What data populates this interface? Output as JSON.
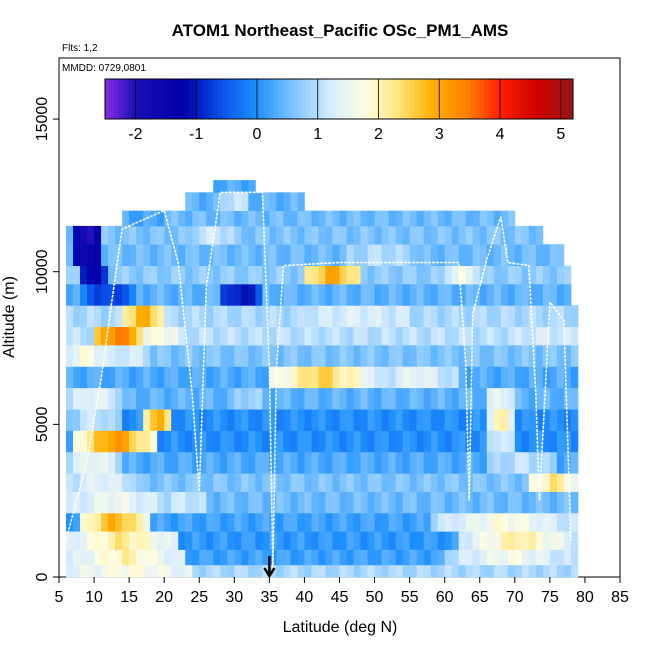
{
  "chart_data": {
    "type": "heatmap",
    "title": "ATOM1 Northeast_Pacific OSc_PM1_AMS",
    "flights_note": "Flts: 1,2",
    "date_note": "MMDD: 0729,0801",
    "xlabel": "Latitude (deg N)",
    "ylabel": "Altitude (m)",
    "xlim": [
      5,
      85
    ],
    "ylim": [
      0,
      17000
    ],
    "x_ticks": [
      5,
      10,
      15,
      20,
      25,
      30,
      35,
      40,
      45,
      50,
      55,
      60,
      65,
      70,
      75,
      80,
      85
    ],
    "y_ticks": [
      0,
      5000,
      10000,
      15000
    ],
    "colorbar": {
      "min": -2.5,
      "max": 5.2,
      "ticks": [
        -2,
        -1,
        0,
        1,
        2,
        3,
        4,
        5
      ],
      "stops": [
        {
          "v": -2.5,
          "c": "#8a2be2"
        },
        {
          "v": -2.0,
          "c": "#1a0fb8"
        },
        {
          "v": -1.2,
          "c": "#0000a8"
        },
        {
          "v": -0.6,
          "c": "#0a4fe8"
        },
        {
          "v": 0.0,
          "c": "#1e90ff"
        },
        {
          "v": 0.6,
          "c": "#7ec4ff"
        },
        {
          "v": 1.2,
          "c": "#d6ecff"
        },
        {
          "v": 1.8,
          "c": "#fffde0"
        },
        {
          "v": 2.3,
          "c": "#ffe680"
        },
        {
          "v": 2.9,
          "c": "#ffb000"
        },
        {
          "v": 3.5,
          "c": "#ff7a00"
        },
        {
          "v": 4.0,
          "c": "#ff2000"
        },
        {
          "v": 4.6,
          "c": "#d00000"
        },
        {
          "v": 5.2,
          "c": "#9a1414"
        }
      ]
    },
    "marker": {
      "type": "arrow-down",
      "latitude": 35
    },
    "bands": [
      {
        "y": [
          0,
          400
        ],
        "x": [
          6,
          79
        ],
        "v": 0.9,
        "bumps": [
          [
            6,
            24,
            1.8
          ]
        ]
      },
      {
        "y": [
          400,
          900
        ],
        "x": [
          6,
          79
        ],
        "v": 0.2,
        "bumps": [
          [
            6,
            23,
            2.1
          ],
          [
            60,
            79,
            1.7
          ]
        ]
      },
      {
        "y": [
          900,
          1500
        ],
        "x": [
          6,
          79
        ],
        "v": 0.1,
        "bumps": [
          [
            6,
            22,
            2.3
          ],
          [
            62,
            79,
            2.2
          ]
        ]
      },
      {
        "y": [
          1500,
          2100
        ],
        "x": [
          6,
          79
        ],
        "v": 0.2,
        "bumps": [
          [
            8,
            18,
            3.0
          ],
          [
            58,
            79,
            1.8
          ]
        ]
      },
      {
        "y": [
          2100,
          2800
        ],
        "x": [
          6,
          79
        ],
        "v": 0.5,
        "bumps": [
          [
            6,
            20,
            1.6
          ],
          [
            20,
            26,
            1.2
          ]
        ]
      },
      {
        "y": [
          2800,
          3400
        ],
        "x": [
          6,
          79
        ],
        "v": 0.6,
        "bumps": [
          [
            6,
            16,
            1.4
          ],
          [
            72,
            79,
            2.3
          ]
        ]
      },
      {
        "y": [
          3400,
          4100
        ],
        "x": [
          6,
          79
        ],
        "v": 0.3,
        "bumps": [
          [
            6,
            14,
            1.6
          ],
          [
            66,
            76,
            1.1
          ]
        ]
      },
      {
        "y": [
          4100,
          4800
        ],
        "x": [
          6,
          79
        ],
        "v": 0.0,
        "bumps": [
          [
            7,
            19,
            3.3
          ],
          [
            66,
            70,
            1.4
          ]
        ]
      },
      {
        "y": [
          4800,
          5500
        ],
        "x": [
          6,
          79
        ],
        "v": 0.0,
        "bumps": [
          [
            6,
            14,
            1.2
          ],
          [
            17,
            21,
            3.2
          ],
          [
            66,
            70,
            2.2
          ]
        ]
      },
      {
        "y": [
          5500,
          6200
        ],
        "x": [
          6,
          79
        ],
        "v": 0.4,
        "bumps": [
          [
            6,
            14,
            1.5
          ],
          [
            30,
            34,
            0.9
          ],
          [
            66,
            70,
            1.6
          ]
        ]
      },
      {
        "y": [
          6200,
          6900
        ],
        "x": [
          6,
          79
        ],
        "v": 0.3,
        "bumps": [
          [
            35,
            50,
            2.6
          ],
          [
            50,
            62,
            1.5
          ]
        ]
      },
      {
        "y": [
          6900,
          7600
        ],
        "x": [
          6,
          79
        ],
        "v": 0.6,
        "bumps": [
          [
            6,
            12,
            1.8
          ],
          [
            12,
            18,
            1.3
          ]
        ]
      },
      {
        "y": [
          7600,
          8200
        ],
        "x": [
          6,
          79
        ],
        "v": 1.0,
        "bumps": [
          [
            10,
            17,
            3.6
          ],
          [
            17,
            22,
            1.8
          ],
          [
            70,
            79,
            1.2
          ]
        ]
      },
      {
        "y": [
          8200,
          8900
        ],
        "x": [
          6,
          79
        ],
        "v": 0.9,
        "bumps": [
          [
            14,
            20,
            3.0
          ],
          [
            40,
            55,
            1.3
          ]
        ]
      },
      {
        "y": [
          8900,
          9600
        ],
        "x": [
          6,
          78
        ],
        "v": 0.4,
        "bumps": [
          [
            8,
            16,
            -0.8
          ],
          [
            28,
            34,
            -1.2
          ]
        ]
      },
      {
        "y": [
          9600,
          10200
        ],
        "x": [
          6,
          78
        ],
        "v": 0.7,
        "bumps": [
          [
            8,
            12,
            -1.6
          ],
          [
            40,
            48,
            3.1
          ],
          [
            60,
            65,
            1.6
          ]
        ]
      },
      {
        "y": [
          10200,
          10900
        ],
        "x": [
          6,
          77
        ],
        "v": 0.5,
        "bumps": [
          [
            7,
            11,
            -1.9
          ],
          [
            46,
            56,
            1.0
          ]
        ]
      },
      {
        "y": [
          10900,
          11500
        ],
        "x": [
          6,
          74
        ],
        "v": 0.6,
        "bumps": [
          [
            7,
            11,
            -2.2
          ],
          [
            24,
            30,
            1.2
          ]
        ]
      },
      {
        "y": [
          11500,
          12000
        ],
        "x": [
          14,
          70
        ],
        "v": 0.5,
        "bumps": [
          [
            14,
            20,
            0.2
          ]
        ]
      },
      {
        "y": [
          12000,
          12600
        ],
        "x": [
          23,
          40
        ],
        "v": 0.4,
        "bumps": [
          [
            28,
            32,
            1.2
          ]
        ]
      },
      {
        "y": [
          12600,
          13000
        ],
        "x": [
          27,
          33
        ],
        "v": 0.3,
        "bumps": []
      }
    ],
    "flight_tracks": [
      {
        "name": "Flt 1",
        "points": [
          [
            6,
            1200
          ],
          [
            9,
            3800
          ],
          [
            11,
            6500
          ],
          [
            13,
            9800
          ],
          [
            14,
            11400
          ],
          [
            20,
            12000
          ],
          [
            22,
            10300
          ],
          [
            24,
            6000
          ],
          [
            25,
            2800
          ],
          [
            26,
            9500
          ],
          [
            28,
            12600
          ],
          [
            34,
            12600
          ],
          [
            35,
            6800
          ],
          [
            35.5,
            300
          ]
        ]
      },
      {
        "name": "Flt 2",
        "points": [
          [
            35.5,
            300
          ],
          [
            36,
            6800
          ],
          [
            37,
            10200
          ],
          [
            45,
            10300
          ],
          [
            55,
            10300
          ],
          [
            62,
            10300
          ],
          [
            63,
            7000
          ],
          [
            63.5,
            2500
          ],
          [
            64,
            8600
          ],
          [
            66,
            10400
          ],
          [
            68,
            11800
          ],
          [
            69,
            10300
          ],
          [
            72,
            10200
          ],
          [
            73,
            6000
          ],
          [
            73.5,
            2500
          ],
          [
            75,
            9000
          ],
          [
            77,
            8400
          ],
          [
            78,
            1200
          ]
        ]
      }
    ]
  }
}
